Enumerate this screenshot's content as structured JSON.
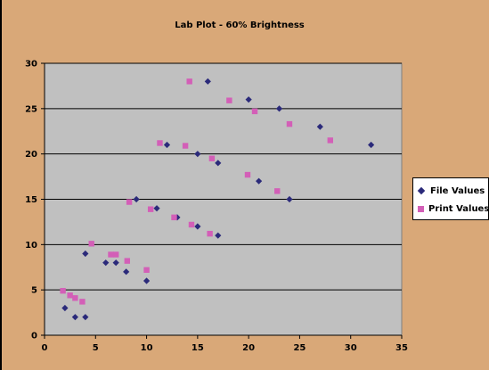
{
  "chart_data": {
    "type": "scatter",
    "title": "Lab Plot - 60% Brightness",
    "xlabel": "",
    "ylabel": "",
    "xlim": [
      0,
      35
    ],
    "ylim": [
      0,
      30
    ],
    "x_ticks": [
      "0",
      "5",
      "10",
      "15",
      "20",
      "25",
      "30",
      "35"
    ],
    "y_ticks": [
      "0",
      "5",
      "10",
      "15",
      "20",
      "25",
      "30"
    ],
    "grid": "horizontal",
    "legend_position": "right",
    "series": [
      {
        "name": "File Values",
        "marker": "diamond",
        "color": "#2b2a7a",
        "points": [
          [
            2,
            3
          ],
          [
            3,
            2
          ],
          [
            4,
            2
          ],
          [
            4,
            9
          ],
          [
            6,
            8
          ],
          [
            7,
            8
          ],
          [
            8,
            7
          ],
          [
            9,
            15
          ],
          [
            10,
            6
          ],
          [
            11,
            14
          ],
          [
            12,
            21
          ],
          [
            13,
            13
          ],
          [
            15,
            20
          ],
          [
            15,
            12
          ],
          [
            16,
            28
          ],
          [
            17,
            19
          ],
          [
            17,
            11
          ],
          [
            20,
            26
          ],
          [
            21,
            17
          ],
          [
            23,
            25
          ],
          [
            24,
            15
          ],
          [
            27,
            23
          ],
          [
            32,
            21
          ]
        ]
      },
      {
        "name": "Print Values",
        "marker": "square",
        "color": "#d35fb7",
        "points": [
          [
            1.8,
            4.9
          ],
          [
            2.5,
            4.4
          ],
          [
            3,
            4.1
          ],
          [
            3.7,
            3.7
          ],
          [
            4.6,
            10.1
          ],
          [
            6.5,
            8.9
          ],
          [
            7,
            8.9
          ],
          [
            8.1,
            8.2
          ],
          [
            8.3,
            14.7
          ],
          [
            10,
            7.2
          ],
          [
            10.4,
            13.9
          ],
          [
            11.3,
            21.2
          ],
          [
            12.7,
            13
          ],
          [
            13.8,
            20.9
          ],
          [
            14.2,
            28
          ],
          [
            14.4,
            12.2
          ],
          [
            16.2,
            11.2
          ],
          [
            16.4,
            19.5
          ],
          [
            18.1,
            25.9
          ],
          [
            19.9,
            17.7
          ],
          [
            20.6,
            24.7
          ],
          [
            22.8,
            15.9
          ],
          [
            24,
            23.3
          ],
          [
            28,
            21.5
          ]
        ]
      }
    ]
  },
  "colors": {
    "background": "#d9a878",
    "plot_area": "#c0c0c0",
    "gridline": "#000000"
  }
}
